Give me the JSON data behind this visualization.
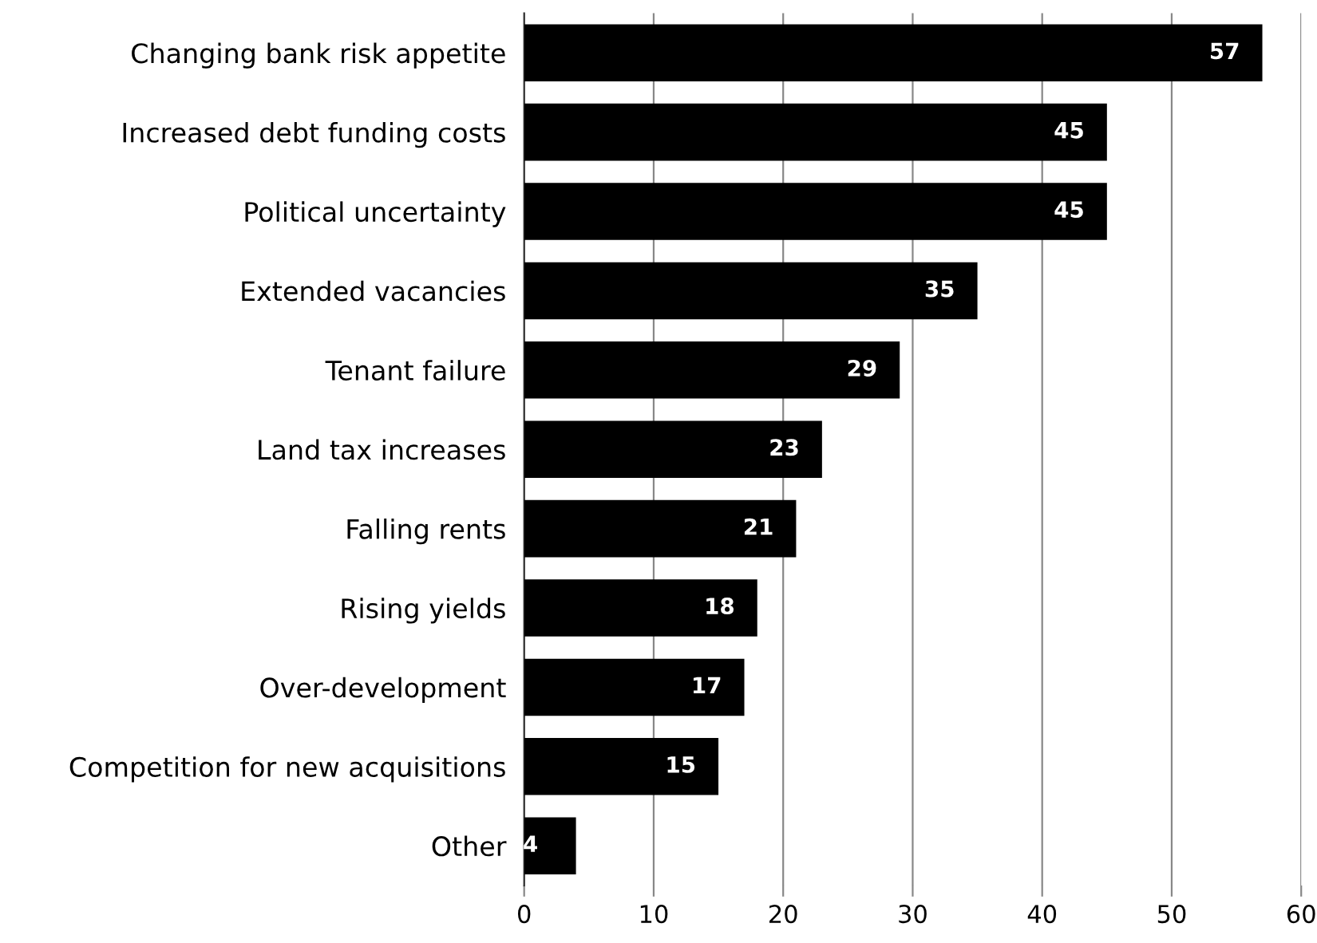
{
  "chart_data": {
    "type": "bar",
    "orientation": "horizontal",
    "categories": [
      "Changing bank risk appetite",
      "Increased debt funding costs",
      "Political uncertainty",
      "Extended vacancies",
      "Tenant failure",
      "Land tax increases",
      "Falling rents",
      "Rising yields",
      "Over-development",
      "Competition for new acquisitions",
      "Other"
    ],
    "values": [
      57,
      45,
      45,
      35,
      29,
      23,
      21,
      18,
      17,
      15,
      4
    ],
    "color": "#000000",
    "xlim": [
      0,
      60
    ],
    "xticks": [
      0,
      10,
      20,
      30,
      40,
      50,
      60
    ],
    "grid": "x",
    "data_labels": true
  }
}
